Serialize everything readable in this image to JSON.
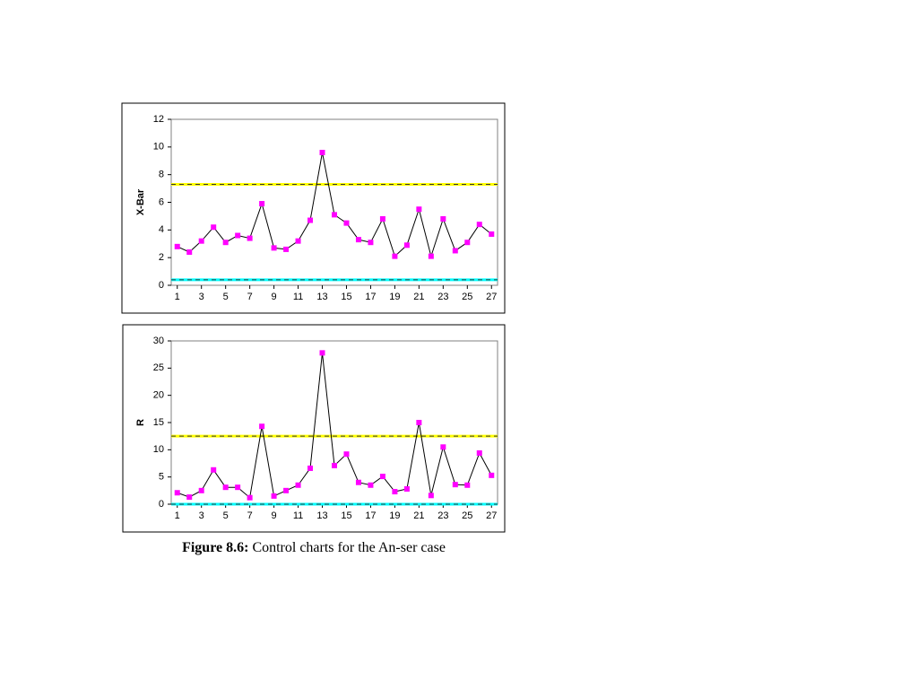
{
  "chart_data": [
    {
      "type": "line",
      "ylabel": "X-Bar",
      "x": [
        1,
        2,
        3,
        4,
        5,
        6,
        7,
        8,
        9,
        10,
        11,
        12,
        13,
        14,
        15,
        16,
        17,
        18,
        19,
        20,
        21,
        22,
        23,
        24,
        25,
        26,
        27
      ],
      "xlim": [
        0.5,
        27.5
      ],
      "xticks": [
        1,
        3,
        5,
        7,
        9,
        11,
        13,
        15,
        17,
        19,
        21,
        23,
        25,
        27
      ],
      "ylim": [
        0,
        12
      ],
      "yticks": [
        0,
        2,
        4,
        6,
        8,
        10,
        12
      ],
      "line_color": "#000000",
      "series": [
        {
          "color": "#ff00ff",
          "values": [
            2.8,
            2.4,
            3.2,
            4.2,
            3.1,
            3.6,
            3.4,
            5.9,
            2.7,
            2.6,
            3.2,
            4.7,
            9.6,
            5.1,
            4.5,
            3.3,
            3.1,
            4.8,
            2.1,
            2.9,
            5.5,
            2.1,
            4.8,
            2.5,
            3.1,
            4.4,
            3.7
          ]
        }
      ],
      "limits": [
        {
          "value": 7.3,
          "color": "#ffff00"
        },
        {
          "value": 0.4,
          "color": "#00ffff"
        }
      ]
    },
    {
      "type": "line",
      "ylabel": "R",
      "x": [
        1,
        2,
        3,
        4,
        5,
        6,
        7,
        8,
        9,
        10,
        11,
        12,
        13,
        14,
        15,
        16,
        17,
        18,
        19,
        20,
        21,
        22,
        23,
        24,
        25,
        26,
        27
      ],
      "xlim": [
        0.5,
        27.5
      ],
      "xticks": [
        1,
        3,
        5,
        7,
        9,
        11,
        13,
        15,
        17,
        19,
        21,
        23,
        25,
        27
      ],
      "ylim": [
        0,
        30
      ],
      "yticks": [
        0,
        5,
        10,
        15,
        20,
        25,
        30
      ],
      "line_color": "#000000",
      "series": [
        {
          "color": "#ff00ff",
          "values": [
            2.1,
            1.3,
            2.5,
            6.3,
            3.1,
            3.1,
            1.2,
            14.3,
            1.5,
            2.5,
            3.5,
            6.6,
            27.8,
            7.1,
            9.2,
            4.0,
            3.5,
            5.1,
            2.3,
            2.8,
            15.0,
            1.6,
            10.5,
            3.6,
            3.5,
            9.4,
            5.3
          ]
        }
      ],
      "limits": [
        {
          "value": 12.5,
          "color": "#ffff00"
        },
        {
          "value": 0,
          "color": "#00ffff"
        }
      ]
    }
  ],
  "caption": {
    "label": "Figure 8.6:",
    "text": "Control charts for the An-ser case"
  }
}
